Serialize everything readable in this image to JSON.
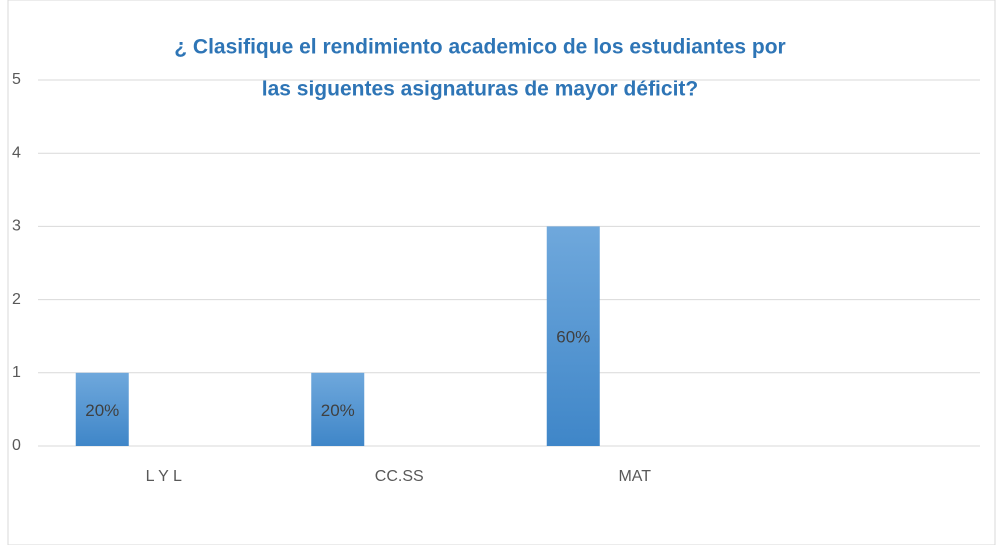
{
  "chart_data": {
    "type": "bar",
    "title": [
      "¿ Clasifique el rendimiento academico de los estudiantes por",
      "las siguentes asignaturas de mayor déficit?"
    ],
    "categories": [
      "L Y L",
      "CC.SS",
      "MAT",
      null
    ],
    "values": [
      1,
      1,
      3,
      null
    ],
    "value_labels": [
      "20%",
      "20%",
      "60%",
      null
    ],
    "color": "#5b9bd5",
    "ylim": [
      0,
      5
    ],
    "yticks": [
      0,
      1,
      2,
      3,
      4,
      5
    ],
    "grid": true
  }
}
